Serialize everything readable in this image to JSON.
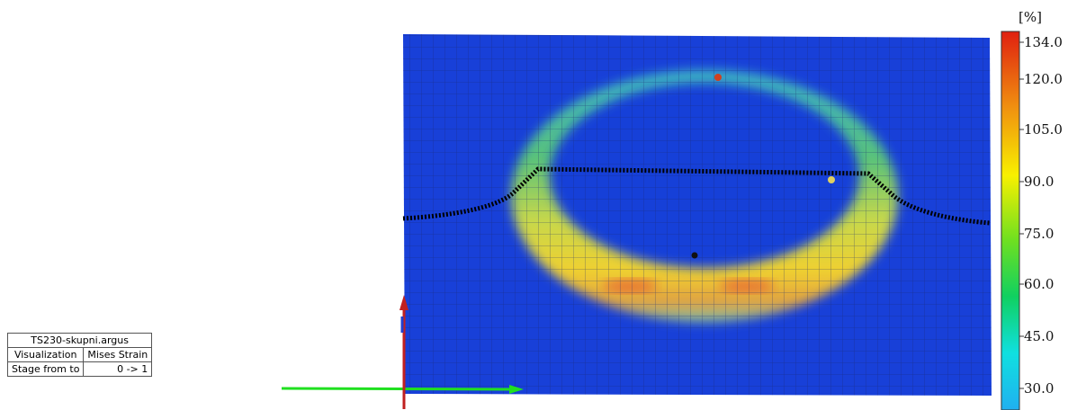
{
  "info_table": {
    "title": "TS230-skupni.argus",
    "rows": [
      [
        "Visualization",
        "Mises Strain"
      ],
      [
        "Stage from to",
        "0 -> 1"
      ]
    ]
  },
  "color_legend": {
    "unit": "[%]",
    "labels": [
      "134.0",
      "120.0",
      "105.0",
      "90.0",
      "75.0",
      "60.0",
      "45.0",
      "30.0"
    ]
  }
}
